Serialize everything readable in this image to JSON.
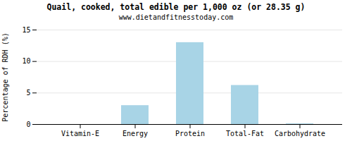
{
  "chart_data": {
    "type": "bar",
    "title": "Quail, cooked, total edible per 1,000 oz (or 28.35 g)",
    "subtitle": "www.dietandfitnesstoday.com",
    "categories": [
      "Vitamin-E",
      "Energy",
      "Protein",
      "Total-Fat",
      "Carbohydrate"
    ],
    "values": [
      0.0,
      3.0,
      13.0,
      6.2,
      0.1
    ],
    "color": "#a8d4e6",
    "ylabel": "Percentage of RDH (%)",
    "ylim": [
      0,
      15
    ],
    "yticks": [
      0,
      5,
      10,
      15
    ],
    "grid": true
  }
}
